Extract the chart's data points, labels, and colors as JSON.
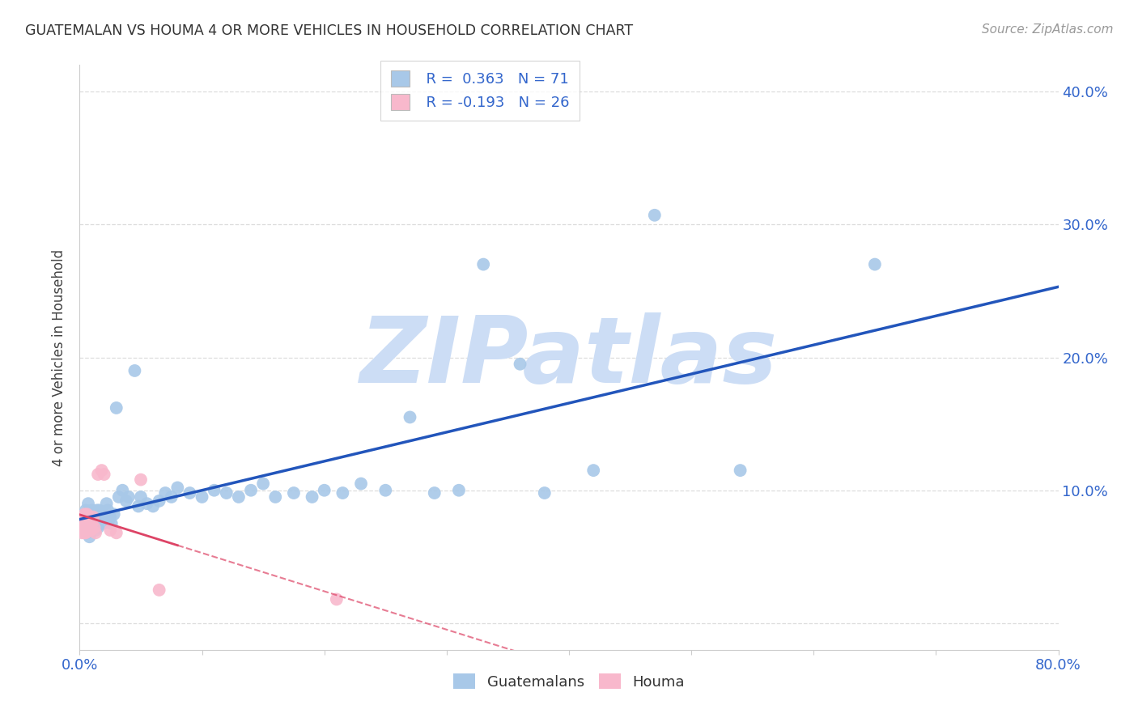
{
  "title": "GUATEMALAN VS HOUMA 4 OR MORE VEHICLES IN HOUSEHOLD CORRELATION CHART",
  "source": "Source: ZipAtlas.com",
  "ylabel": "4 or more Vehicles in Household",
  "xlim": [
    0.0,
    0.8
  ],
  "ylim": [
    -0.02,
    0.42
  ],
  "x_ticks": [
    0.0,
    0.1,
    0.2,
    0.3,
    0.4,
    0.5,
    0.6,
    0.7,
    0.8
  ],
  "y_ticks": [
    0.0,
    0.1,
    0.2,
    0.3,
    0.4
  ],
  "legend_r1": "R =  0.363",
  "legend_n1": "N = 71",
  "legend_r2": "R = -0.193",
  "legend_n2": "N = 26",
  "blue_scatter_color": "#a8c8e8",
  "pink_scatter_color": "#f8b8cc",
  "blue_line_color": "#2255bb",
  "pink_line_color": "#dd4466",
  "r_n_color": "#3366cc",
  "tick_color": "#3366cc",
  "grid_color": "#dddddd",
  "watermark": "ZIPatlas",
  "watermark_color": "#ccddf5",
  "guatemalan_x": [
    0.002,
    0.003,
    0.004,
    0.005,
    0.005,
    0.006,
    0.006,
    0.007,
    0.007,
    0.008,
    0.008,
    0.009,
    0.01,
    0.01,
    0.011,
    0.011,
    0.012,
    0.013,
    0.013,
    0.014,
    0.015,
    0.015,
    0.016,
    0.017,
    0.018,
    0.019,
    0.02,
    0.022,
    0.023,
    0.024,
    0.025,
    0.026,
    0.028,
    0.03,
    0.032,
    0.035,
    0.038,
    0.04,
    0.045,
    0.048,
    0.05,
    0.055,
    0.06,
    0.065,
    0.07,
    0.075,
    0.08,
    0.09,
    0.1,
    0.11,
    0.12,
    0.13,
    0.14,
    0.15,
    0.16,
    0.175,
    0.19,
    0.2,
    0.215,
    0.23,
    0.25,
    0.27,
    0.29,
    0.31,
    0.33,
    0.36,
    0.38,
    0.42,
    0.47,
    0.54,
    0.65
  ],
  "guatemalan_y": [
    0.075,
    0.08,
    0.072,
    0.085,
    0.078,
    0.082,
    0.068,
    0.09,
    0.075,
    0.078,
    0.065,
    0.072,
    0.085,
    0.07,
    0.08,
    0.075,
    0.082,
    0.078,
    0.07,
    0.085,
    0.072,
    0.08,
    0.085,
    0.078,
    0.082,
    0.075,
    0.08,
    0.09,
    0.085,
    0.078,
    0.08,
    0.075,
    0.082,
    0.162,
    0.095,
    0.1,
    0.092,
    0.095,
    0.19,
    0.088,
    0.095,
    0.09,
    0.088,
    0.092,
    0.098,
    0.095,
    0.102,
    0.098,
    0.095,
    0.1,
    0.098,
    0.095,
    0.1,
    0.105,
    0.095,
    0.098,
    0.095,
    0.1,
    0.098,
    0.105,
    0.1,
    0.155,
    0.098,
    0.1,
    0.27,
    0.195,
    0.098,
    0.115,
    0.307,
    0.115,
    0.27
  ],
  "houma_x": [
    0.001,
    0.002,
    0.002,
    0.003,
    0.003,
    0.004,
    0.004,
    0.005,
    0.005,
    0.006,
    0.006,
    0.007,
    0.008,
    0.009,
    0.01,
    0.011,
    0.012,
    0.013,
    0.015,
    0.018,
    0.02,
    0.025,
    0.03,
    0.05,
    0.065,
    0.21
  ],
  "houma_y": [
    0.075,
    0.078,
    0.068,
    0.08,
    0.072,
    0.082,
    0.068,
    0.078,
    0.068,
    0.082,
    0.07,
    0.075,
    0.078,
    0.07,
    0.075,
    0.08,
    0.072,
    0.068,
    0.112,
    0.115,
    0.112,
    0.07,
    0.068,
    0.108,
    0.025,
    0.018
  ]
}
